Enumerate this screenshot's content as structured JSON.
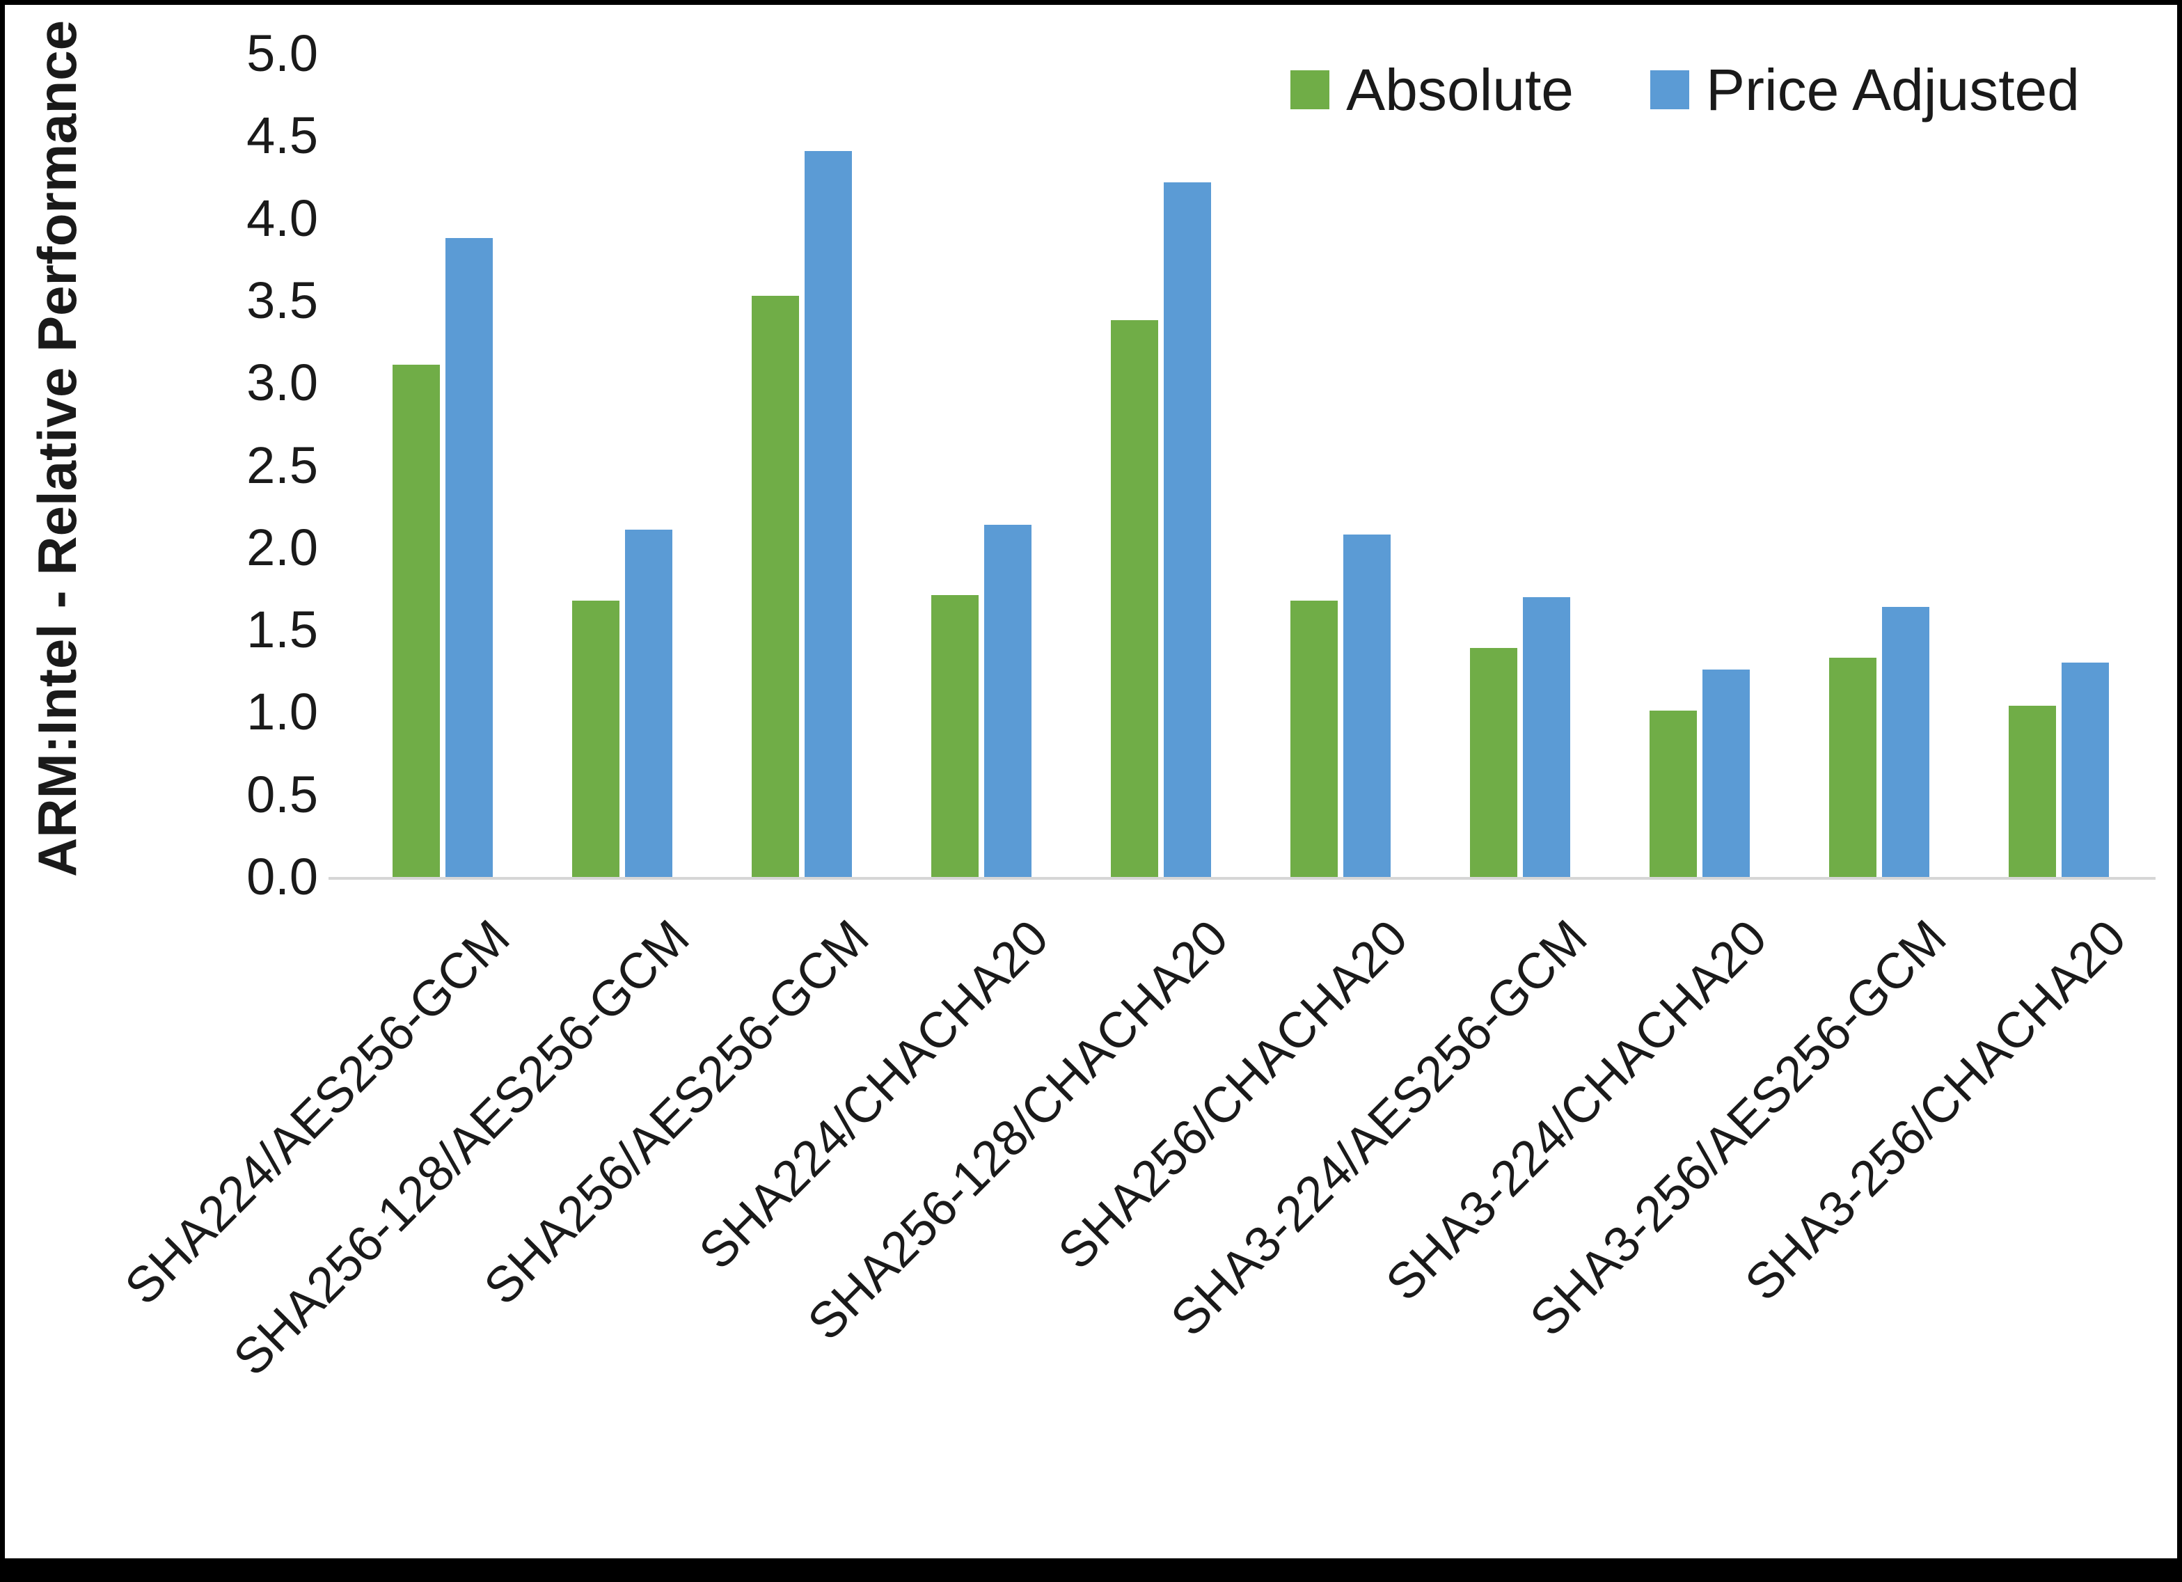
{
  "chart_data": {
    "type": "bar",
    "title": "",
    "xlabel": "",
    "ylabel": "ARM:Intel - Relative Performance",
    "ylim": [
      0,
      5
    ],
    "ytick_step": 0.5,
    "grid": false,
    "legend_position": "top-right",
    "categories": [
      "SHA224/AES256-GCM",
      "SHA256-128/AES256-GCM",
      "SHA256/AES256-GCM",
      "SHA224/CHACHA20",
      "SHA256-128/CHACHA20",
      "SHA256/CHACHA20",
      "SHA3-224/AES256-GCM",
      "SHA3-224/CHACHA20",
      "SHA3-256/AES256-GCM",
      "SHA3-256/CHACHA20"
    ],
    "series": [
      {
        "name": "Absolute",
        "color": "#70AD47",
        "values": [
          3.11,
          1.68,
          3.53,
          1.71,
          3.38,
          1.68,
          1.39,
          1.01,
          1.33,
          1.04
        ]
      },
      {
        "name": "Price Adjusted",
        "color": "#5B9BD5",
        "values": [
          3.88,
          2.11,
          4.41,
          2.14,
          4.22,
          2.08,
          1.7,
          1.26,
          1.64,
          1.3
        ]
      }
    ]
  }
}
